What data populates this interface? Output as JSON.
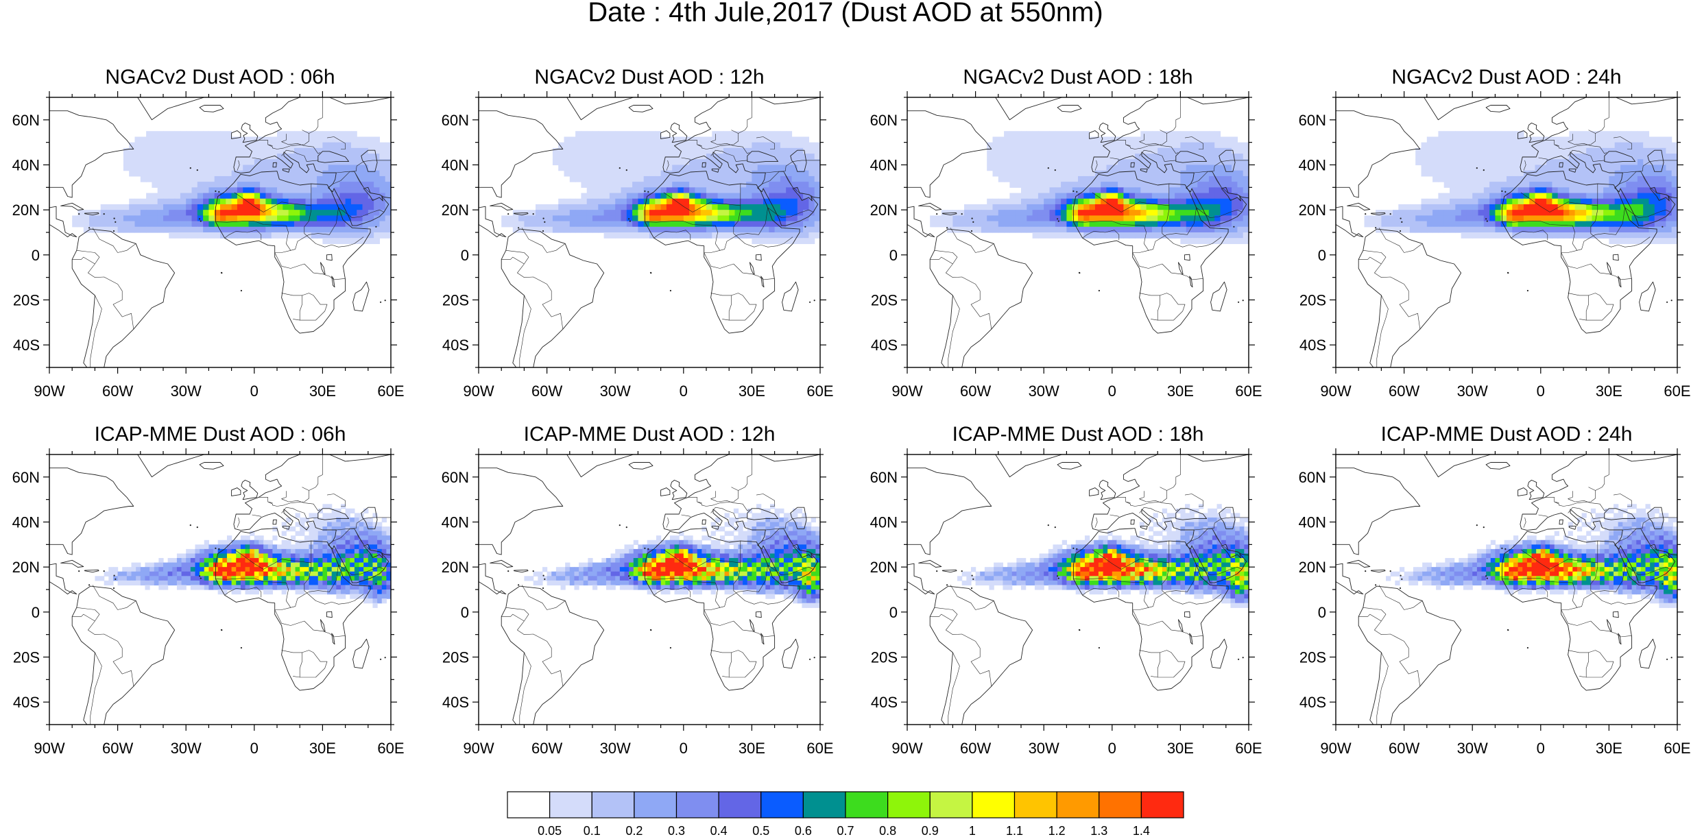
{
  "figure": {
    "title": "Date : 4th Jule,2017 (Dust AOD at 550nm)"
  },
  "axes": {
    "lon_ticks": [
      "90W",
      "60W",
      "30W",
      "0",
      "30E",
      "60E"
    ],
    "lat_ticks": [
      "60N",
      "40N",
      "20N",
      "0",
      "20S",
      "40S"
    ],
    "lon_range": [
      -90,
      60
    ],
    "lat_range": [
      -50,
      70
    ]
  },
  "panels": [
    {
      "title": "NGACv2 Dust AOD : 06h",
      "model": "ngac",
      "hour": 6
    },
    {
      "title": "NGACv2 Dust AOD : 12h",
      "model": "ngac",
      "hour": 12
    },
    {
      "title": "NGACv2 Dust AOD : 18h",
      "model": "ngac",
      "hour": 18
    },
    {
      "title": "NGACv2 Dust AOD : 24h",
      "model": "ngac",
      "hour": 24
    },
    {
      "title": "ICAP-MME Dust AOD : 06h",
      "model": "icap",
      "hour": 6
    },
    {
      "title": "ICAP-MME Dust AOD : 12h",
      "model": "icap",
      "hour": 12
    },
    {
      "title": "ICAP-MME Dust AOD : 18h",
      "model": "icap",
      "hour": 18
    },
    {
      "title": "ICAP-MME Dust AOD : 24h",
      "model": "icap",
      "hour": 24
    }
  ],
  "colorbar": {
    "labels": [
      "0.05",
      "0.1",
      "0.2",
      "0.3",
      "0.4",
      "0.5",
      "0.6",
      "0.7",
      "0.8",
      "0.9",
      "1",
      "1.1",
      "1.2",
      "1.3",
      "1.4"
    ],
    "colors": [
      "#ffffff",
      "#d4dcfa",
      "#b3c2f7",
      "#8fa8f5",
      "#7f8ef0",
      "#6366e6",
      "#0a5cff",
      "#009090",
      "#3ddc1e",
      "#8ef50a",
      "#c5f542",
      "#ffff00",
      "#ffc400",
      "#ff9a00",
      "#ff7200",
      "#ff2a10"
    ]
  }
}
